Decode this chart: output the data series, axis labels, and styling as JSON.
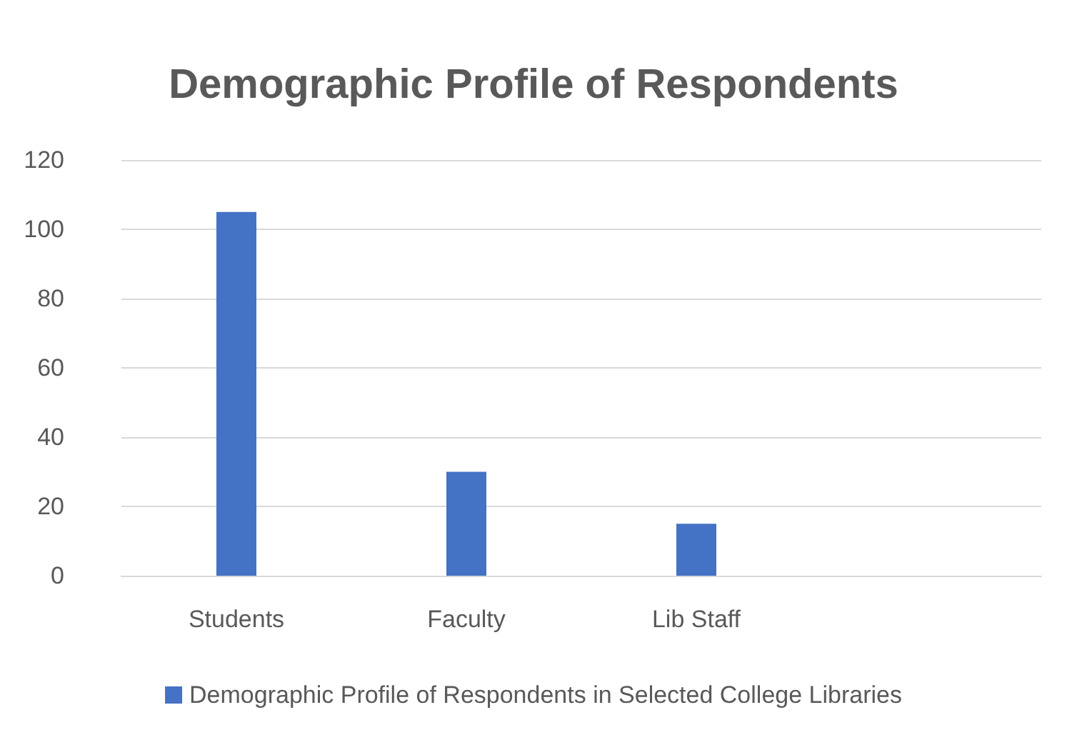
{
  "chart_data": {
    "type": "bar",
    "title": "Demographic Profile of Respondents",
    "categories": [
      "Students",
      "Faculty",
      "Lib Staff",
      null
    ],
    "series": [
      {
        "name": "Demographic Profile of Respondents in Selected College Libraries",
        "color": "#4472c4",
        "values": [
          105,
          30,
          15,
          null
        ]
      }
    ],
    "ylim": [
      0,
      120
    ],
    "yticks": [
      0,
      20,
      40,
      60,
      80,
      100,
      120
    ],
    "grid": "y",
    "legend": "bottom"
  }
}
